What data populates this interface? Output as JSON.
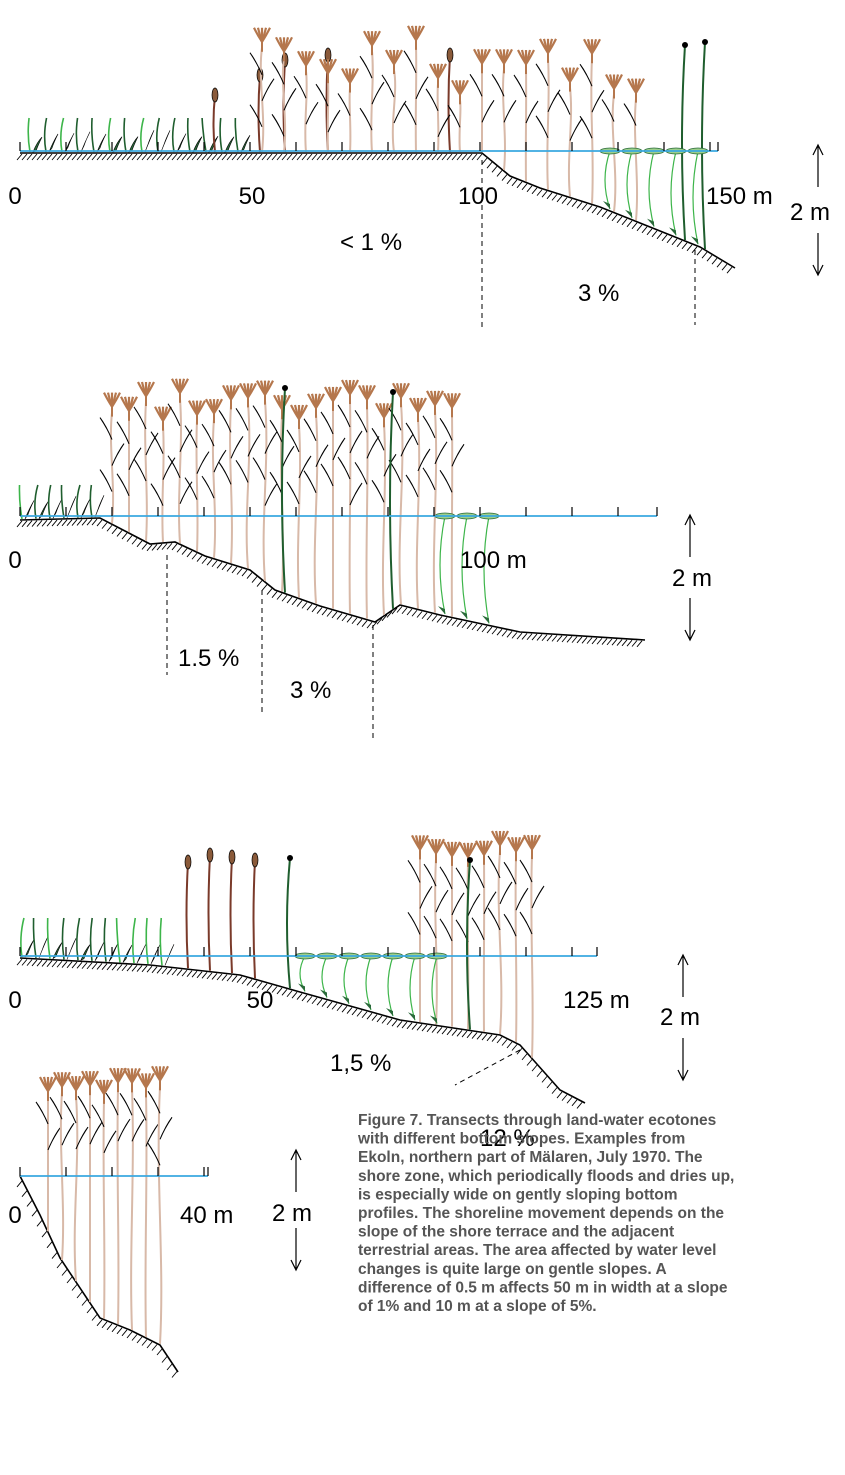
{
  "panels": [
    {
      "labels": [
        "0",
        "50",
        "100",
        "150 m",
        "2 m",
        "< 1 %",
        "3 %"
      ]
    },
    {
      "labels": [
        "0",
        "100 m",
        "2 m",
        "1.5 %",
        "3 %"
      ]
    },
    {
      "labels": [
        "0",
        "50",
        "125 m",
        "2 m",
        "1,5 %",
        "12 %"
      ]
    },
    {
      "labels": [
        "0",
        "40 m",
        "2 m"
      ]
    }
  ],
  "caption": [
    "Figure 7. Transects through land-water ecotones",
    "with different bottom slopes. Examples from",
    "Ekoln, northern part of Mälaren, July 1970. The",
    "shore zone, which periodically floods and dries up,",
    "is especially wide on gently sloping bottom",
    "profiles. The shoreline movement depends on the",
    "slope of the shore terrace and the adjacent",
    "terrestrial areas. The area affected by water level",
    "changes is quite large on gentle slopes. A",
    "difference of 0.5 m affects 50 m in width at a slope",
    "of 1% and 10 m at a slope of 5%."
  ]
}
